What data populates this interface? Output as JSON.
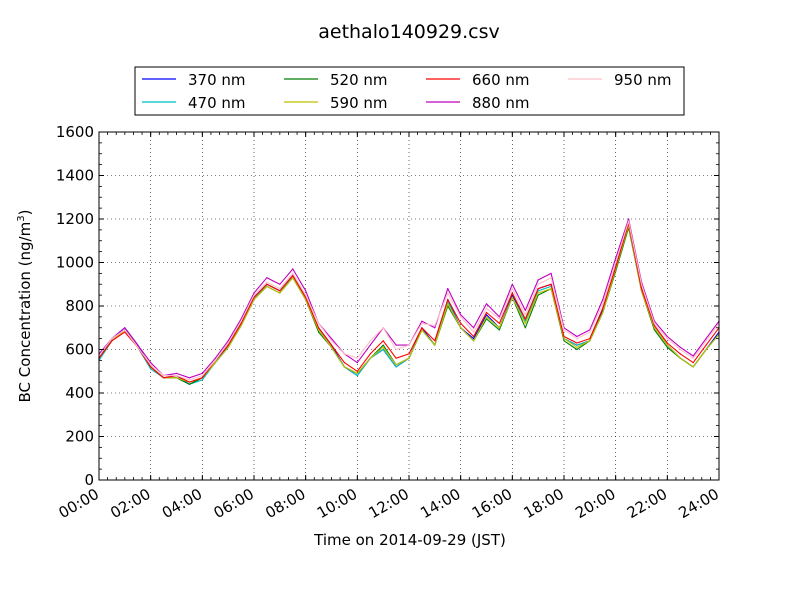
{
  "chart_data": {
    "type": "line",
    "title": "aethalo140929.csv",
    "xlabel": "Time on 2014-09-29 (JST)",
    "ylabel_main": "BC Concentration (ng/m",
    "ylabel_sup": "3",
    "ylabel_tail": ")",
    "xlim_hours": [
      0,
      24
    ],
    "ylim": [
      0,
      1600
    ],
    "grid": true,
    "legend_position": "top",
    "x_ticks": [
      "00:00",
      "02:00",
      "04:00",
      "06:00",
      "08:00",
      "10:00",
      "12:00",
      "14:00",
      "16:00",
      "18:00",
      "20:00",
      "22:00",
      "24:00"
    ],
    "y_ticks": [
      "0",
      "200",
      "400",
      "600",
      "800",
      "1000",
      "1200",
      "1400",
      "1600"
    ],
    "x_hours": [
      0,
      0.5,
      1,
      1.5,
      2,
      2.5,
      3,
      3.5,
      4,
      4.5,
      5,
      5.5,
      6,
      6.5,
      7,
      7.5,
      8,
      8.5,
      9,
      9.5,
      10,
      10.5,
      11,
      11.5,
      12,
      12.5,
      13,
      13.5,
      14,
      14.5,
      15,
      15.5,
      16,
      16.5,
      17,
      17.5,
      18,
      18.5,
      19,
      19.5,
      20,
      20.5,
      21,
      21.5,
      22,
      22.5,
      23,
      23.5,
      24
    ],
    "series": [
      {
        "name": "370 nm",
        "color": "#0000ff",
        "values": [
          560,
          650,
          700,
          620,
          520,
          470,
          480,
          440,
          470,
          540,
          620,
          720,
          840,
          900,
          870,
          940,
          830,
          700,
          620,
          520,
          480,
          560,
          600,
          520,
          560,
          700,
          620,
          830,
          700,
          650,
          760,
          700,
          850,
          730,
          880,
          900,
          650,
          620,
          640,
          780,
          980,
          1180,
          880,
          700,
          620,
          560,
          520,
          600,
          680
        ]
      },
      {
        "name": "470 nm",
        "color": "#00bfbf",
        "values": [
          550,
          640,
          690,
          610,
          510,
          470,
          470,
          440,
          460,
          540,
          610,
          710,
          830,
          900,
          870,
          930,
          830,
          690,
          610,
          520,
          480,
          560,
          600,
          520,
          560,
          690,
          620,
          820,
          700,
          640,
          750,
          700,
          840,
          730,
          870,
          890,
          650,
          620,
          640,
          770,
          970,
          1170,
          870,
          700,
          620,
          560,
          520,
          600,
          670
        ]
      },
      {
        "name": "520 nm",
        "color": "#007f00",
        "values": [
          560,
          640,
          690,
          610,
          520,
          470,
          470,
          440,
          470,
          540,
          610,
          710,
          830,
          890,
          860,
          930,
          830,
          680,
          610,
          520,
          490,
          560,
          620,
          530,
          560,
          690,
          620,
          800,
          700,
          640,
          740,
          690,
          840,
          700,
          850,
          880,
          640,
          600,
          640,
          770,
          960,
          1160,
          870,
          690,
          610,
          560,
          520,
          600,
          670
        ]
      },
      {
        "name": "590 nm",
        "color": "#bfbf00",
        "values": [
          560,
          640,
          690,
          610,
          520,
          470,
          470,
          450,
          470,
          540,
          610,
          710,
          830,
          890,
          860,
          930,
          830,
          690,
          610,
          520,
          490,
          560,
          610,
          530,
          560,
          690,
          620,
          810,
          700,
          640,
          750,
          700,
          840,
          720,
          860,
          880,
          650,
          610,
          640,
          770,
          970,
          1170,
          870,
          700,
          620,
          560,
          520,
          600,
          670
        ]
      },
      {
        "name": "660 nm",
        "color": "#ff0000",
        "values": [
          560,
          640,
          680,
          610,
          520,
          470,
          480,
          450,
          470,
          550,
          620,
          720,
          840,
          900,
          870,
          940,
          840,
          700,
          620,
          540,
          500,
          580,
          640,
          560,
          580,
          700,
          640,
          830,
          720,
          660,
          770,
          720,
          860,
          740,
          880,
          900,
          660,
          630,
          650,
          790,
          980,
          1180,
          880,
          710,
          630,
          580,
          540,
          620,
          700
        ]
      },
      {
        "name": "880 nm",
        "color": "#bf00bf",
        "values": [
          580,
          650,
          700,
          620,
          540,
          480,
          490,
          470,
          490,
          560,
          640,
          740,
          860,
          930,
          900,
          970,
          870,
          720,
          650,
          580,
          540,
          620,
          700,
          620,
          620,
          730,
          700,
          880,
          760,
          700,
          810,
          750,
          900,
          780,
          920,
          950,
          700,
          660,
          690,
          830,
          1020,
          1200,
          910,
          730,
          660,
          610,
          570,
          650,
          730
        ]
      },
      {
        "name": "950 nm",
        "color": "#ffc0cb",
        "values": [
          570,
          650,
          690,
          610,
          530,
          480,
          480,
          460,
          480,
          550,
          630,
          730,
          850,
          910,
          880,
          950,
          850,
          720,
          640,
          580,
          560,
          640,
          700,
          600,
          620,
          720,
          710,
          860,
          750,
          680,
          790,
          740,
          880,
          760,
          900,
          930,
          690,
          650,
          680,
          810,
          1000,
          1190,
          900,
          720,
          650,
          600,
          560,
          640,
          720
        ]
      }
    ]
  }
}
